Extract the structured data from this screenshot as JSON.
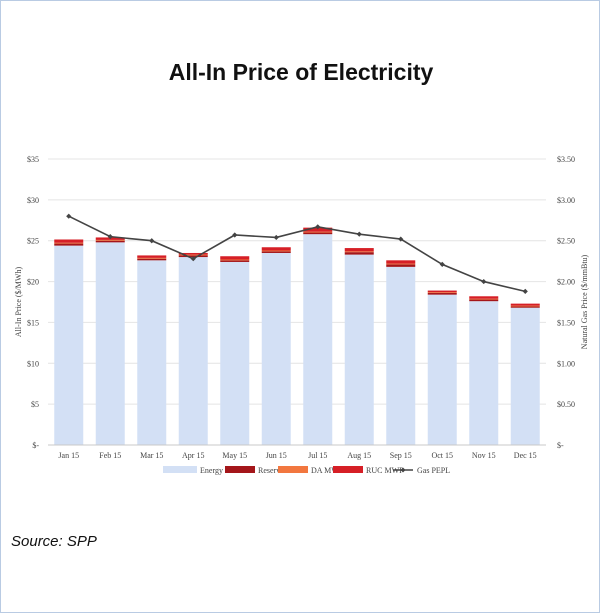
{
  "title": "All-In Price of Electricity",
  "source": "Source:  SPP",
  "chart_data": {
    "type": "bar",
    "stacked": true,
    "categories": [
      "Jan 15",
      "Feb 15",
      "Mar 15",
      "Apr 15",
      "May 15",
      "Jun 15",
      "Jul 15",
      "Aug 15",
      "Sep 15",
      "Oct 15",
      "Nov 15",
      "Dec 15"
    ],
    "ylabel": "All-In Price ($/MWh)",
    "ylim": [
      0,
      35
    ],
    "yticks": [
      0,
      5,
      10,
      15,
      20,
      25,
      30,
      35
    ],
    "ytick_labels": [
      "$-",
      "$5",
      "$10",
      "$15",
      "$20",
      "$25",
      "$30",
      "$35"
    ],
    "y2label": "Natural Gas Price ($/mmBtu)",
    "y2lim": [
      0,
      3.5
    ],
    "y2ticks": [
      0,
      0.5,
      1,
      1.5,
      2,
      2.5,
      3,
      3.5
    ],
    "y2tick_labels": [
      "$-",
      "$0.50",
      "$1.00",
      "$1.50",
      "$2.00",
      "$2.50",
      "$3.00",
      "$3.50"
    ],
    "grid": true,
    "legend_position": "bottom",
    "series": [
      {
        "name": "Energy",
        "kind": "bar",
        "color": "#d3e0f5",
        "values": [
          24.4,
          24.8,
          22.6,
          23.0,
          22.4,
          23.5,
          25.8,
          23.3,
          21.8,
          18.4,
          17.6,
          16.8
        ]
      },
      {
        "name": "Reserves",
        "kind": "bar",
        "color": "#a4161a",
        "values": [
          0.25,
          0.2,
          0.2,
          0.2,
          0.2,
          0.2,
          0.2,
          0.3,
          0.3,
          0.2,
          0.2,
          0.15
        ]
      },
      {
        "name": "DA MWP",
        "kind": "bar",
        "color": "#f2773f",
        "values": [
          0.1,
          0.1,
          0.1,
          0.1,
          0.1,
          0.1,
          0.1,
          0.1,
          0.1,
          0.1,
          0.1,
          0.1
        ]
      },
      {
        "name": "RUC MWP",
        "kind": "bar",
        "color": "#d61f26",
        "values": [
          0.4,
          0.3,
          0.3,
          0.2,
          0.4,
          0.4,
          0.5,
          0.4,
          0.4,
          0.2,
          0.3,
          0.25
        ]
      },
      {
        "name": "Gas PEPL",
        "kind": "line",
        "axis": "right",
        "color": "#444444",
        "values": [
          2.8,
          2.55,
          2.5,
          2.28,
          2.57,
          2.54,
          2.67,
          2.58,
          2.52,
          2.21,
          2.0,
          1.88
        ]
      }
    ]
  }
}
